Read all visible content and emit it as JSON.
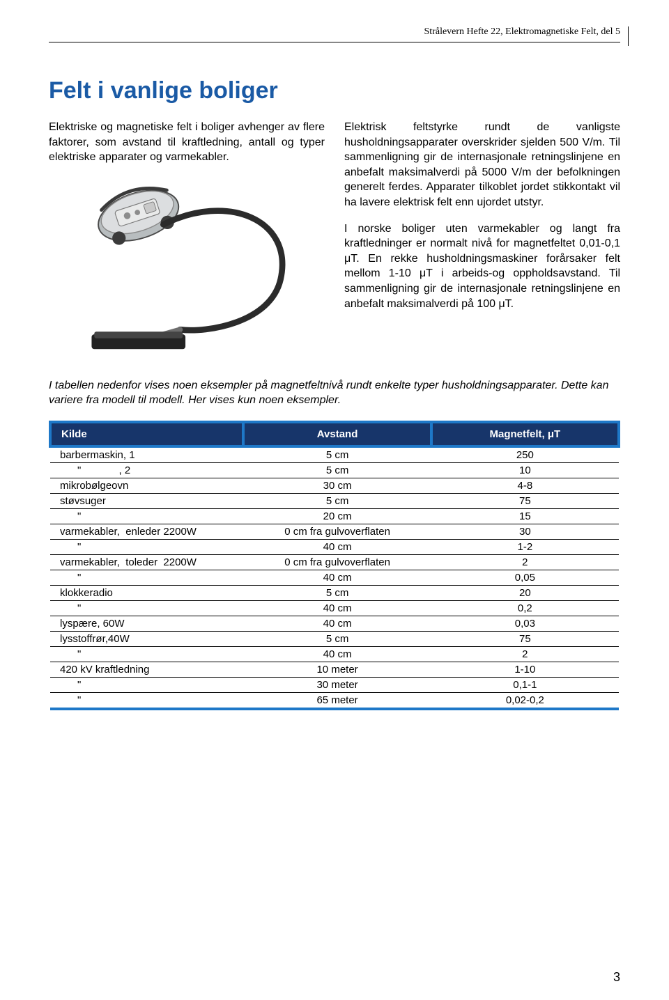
{
  "header": {
    "running_title": "Strålevern Hefte 22, Elektromagnetiske Felt, del 5"
  },
  "title": "Felt i vanlige boliger",
  "left_column": {
    "p1": "Elektriske og magnetiske felt i boliger avhenger av flere faktorer, som avstand til kraftledning, antall og typer elektriske apparater og varmekabler."
  },
  "right_column": {
    "p1": "Elektrisk feltstyrke rundt de vanligste husholdningsapparater overskrider sjelden 500 V/m. Til sammenligning gir de internasjonale retningslinjene en anbefalt maksimalverdi på 5000 V/m der befolkningen generelt ferdes. Apparater tilkoblet jordet stikkontakt vil ha lavere elektrisk felt enn ujordet utstyr.",
    "p2": "I norske boliger uten varmekabler og langt fra kraftledninger er normalt nivå for magnetfeltet 0,01-0,1 μT. En rekke husholdningsmaskiner forårsaker felt mellom 1-10 μT i arbeids-og oppholdsavstand. Til sammenligning gir de internasjonale retningslinjene en anbefalt maksimalverdi på 100 μT."
  },
  "caption": "I tabellen nedenfor vises noen eksempler på magnetfeltnivå rundt enkelte typer husholdningsapparater. Dette kan variere fra modell til modell. Her vises kun noen eksempler.",
  "table": {
    "type": "table",
    "header_bg": "#17356a",
    "header_fg": "#ffffff",
    "border_color": "#1e78c8",
    "columns": [
      "Kilde",
      "Avstand",
      "Magnetfelt, μT"
    ],
    "rows": [
      [
        "barbermaskin, 1",
        "5 cm",
        "250"
      ],
      [
        "      \"             , 2",
        "5 cm",
        "10"
      ],
      [
        "mikrobølgeovn",
        "30 cm",
        "4-8"
      ],
      [
        "støvsuger",
        "5 cm",
        "75"
      ],
      [
        "      \"",
        "20 cm",
        "15"
      ],
      [
        "varmekabler,  enleder 2200W",
        "0 cm fra gulvoverflaten",
        "30"
      ],
      [
        "      \"",
        "40 cm",
        "1-2"
      ],
      [
        "varmekabler,  toleder  2200W",
        "0 cm fra gulvoverflaten",
        "2"
      ],
      [
        "      \"",
        "40 cm",
        "0,05"
      ],
      [
        "klokkeradio",
        "5 cm",
        "20"
      ],
      [
        "      \"",
        "40 cm",
        "0,2"
      ],
      [
        "lyspære, 60W",
        "40 cm",
        "0,03"
      ],
      [
        "lysstoffrør,40W",
        "5 cm",
        "75"
      ],
      [
        "      \"",
        "40 cm",
        "2"
      ],
      [
        "420 kV kraftledning",
        "10 meter",
        "1-10"
      ],
      [
        "      \"",
        "30 meter",
        "0,1-1"
      ],
      [
        "      \"",
        "65 meter",
        "0,02-0,2"
      ]
    ]
  },
  "page_number": "3",
  "illustration": {
    "name": "vacuum-cleaner-illustration"
  }
}
